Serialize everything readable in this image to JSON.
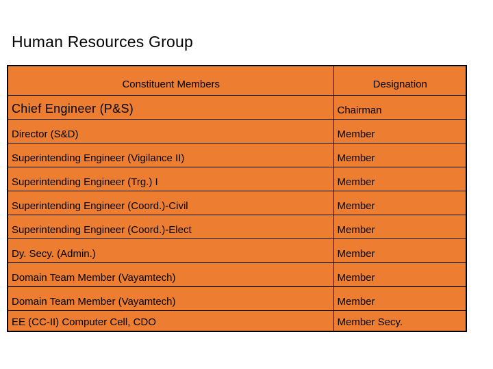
{
  "page": {
    "title": "Human Resources Group"
  },
  "table": {
    "headers": {
      "members": "Constituent Members",
      "designation": "Designation"
    },
    "rows": [
      {
        "member": "Chief Engineer (P&S)",
        "designation": "Chairman"
      },
      {
        "member": "Director (S&D)",
        "designation": "Member"
      },
      {
        "member": "Superintending Engineer (Vigilance II)",
        "designation": "Member"
      },
      {
        "member": "Superintending Engineer (Trg.) I",
        "designation": "Member"
      },
      {
        "member": "Superintending Engineer (Coord.)-Civil",
        "designation": "Member"
      },
      {
        "member": "Superintending Engineer (Coord.)-Elect",
        "designation": "Member"
      },
      {
        "member": "Dy. Secy. (Admin.)",
        "designation": "Member"
      },
      {
        "member": "Domain Team Member (Vayamtech)",
        "designation": "Member"
      },
      {
        "member": "Domain Team Member (Vayamtech)",
        "designation": "Member"
      },
      {
        "member": "EE (CC-II) Computer Cell, CDO",
        "designation": "Member Secy."
      }
    ],
    "colors": {
      "cell_fill": "#ED7D31",
      "border": "#000000",
      "text": "#000000"
    }
  }
}
